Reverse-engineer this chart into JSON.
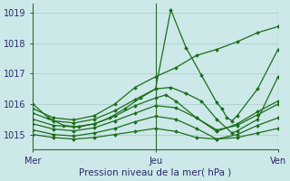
{
  "title": "",
  "xlabel": "Pression niveau de la mer( hPa )",
  "background_color": "#cce8e8",
  "grid_color": "#aacfcf",
  "line_color": "#1a6e1a",
  "ylim": [
    1014.5,
    1019.3
  ],
  "xlim": [
    0,
    48
  ],
  "yticks": [
    1015,
    1016,
    1017,
    1018,
    1019
  ],
  "xtick_positions": [
    0,
    24,
    48
  ],
  "xtick_labels": [
    "Mer",
    "Jeu",
    "Ven"
  ],
  "series": [
    {
      "x": [
        0,
        4,
        8,
        12,
        16,
        20,
        24,
        28,
        32,
        36,
        40,
        44,
        48
      ],
      "y": [
        1015.85,
        1015.55,
        1015.48,
        1015.62,
        1016.0,
        1016.55,
        1016.9,
        1017.2,
        1017.6,
        1017.8,
        1018.05,
        1018.35,
        1018.55
      ]
    },
    {
      "x": [
        0,
        4,
        8,
        12,
        16,
        20,
        24,
        28,
        32,
        36,
        40,
        44,
        48
      ],
      "y": [
        1015.0,
        1014.9,
        1014.85,
        1014.9,
        1015.0,
        1015.1,
        1015.2,
        1015.1,
        1014.9,
        1014.85,
        1014.9,
        1015.05,
        1015.2
      ]
    },
    {
      "x": [
        0,
        4,
        8,
        12,
        16,
        20,
        24,
        26,
        28,
        32,
        36,
        40,
        44,
        48
      ],
      "y": [
        1015.5,
        1015.3,
        1015.25,
        1015.35,
        1015.6,
        1015.95,
        1016.2,
        1016.3,
        1016.1,
        1015.55,
        1015.1,
        1015.35,
        1015.75,
        1016.1
      ]
    },
    {
      "x": [
        0,
        4,
        8,
        12,
        16,
        20,
        24,
        27,
        30,
        33,
        36,
        39,
        40,
        44,
        48
      ],
      "y": [
        1015.7,
        1015.45,
        1015.38,
        1015.5,
        1015.78,
        1016.15,
        1016.5,
        1016.55,
        1016.35,
        1016.1,
        1015.5,
        1015.05,
        1015.12,
        1015.5,
        1016.9
      ]
    },
    {
      "x": [
        0,
        3,
        6,
        9,
        12,
        15,
        18,
        21,
        24,
        27,
        30,
        33,
        36,
        37,
        38,
        39,
        40,
        44,
        48
      ],
      "y": [
        1016.0,
        1015.55,
        1015.3,
        1015.25,
        1015.35,
        1015.55,
        1015.85,
        1016.2,
        1016.5,
        1019.1,
        1017.85,
        1016.95,
        1016.05,
        1015.85,
        1015.55,
        1015.45,
        1015.62,
        1016.5,
        1017.8
      ]
    },
    {
      "x": [
        0,
        4,
        8,
        12,
        16,
        20,
        24,
        28,
        32,
        36,
        40,
        44,
        48
      ],
      "y": [
        1015.15,
        1015.0,
        1014.95,
        1015.05,
        1015.2,
        1015.42,
        1015.6,
        1015.5,
        1015.2,
        1014.85,
        1015.0,
        1015.3,
        1015.55
      ]
    },
    {
      "x": [
        0,
        4,
        8,
        12,
        16,
        20,
        24,
        28,
        32,
        36,
        40,
        44,
        48
      ],
      "y": [
        1015.35,
        1015.18,
        1015.12,
        1015.22,
        1015.45,
        1015.7,
        1015.95,
        1015.88,
        1015.55,
        1015.15,
        1015.3,
        1015.65,
        1016.0
      ]
    }
  ]
}
